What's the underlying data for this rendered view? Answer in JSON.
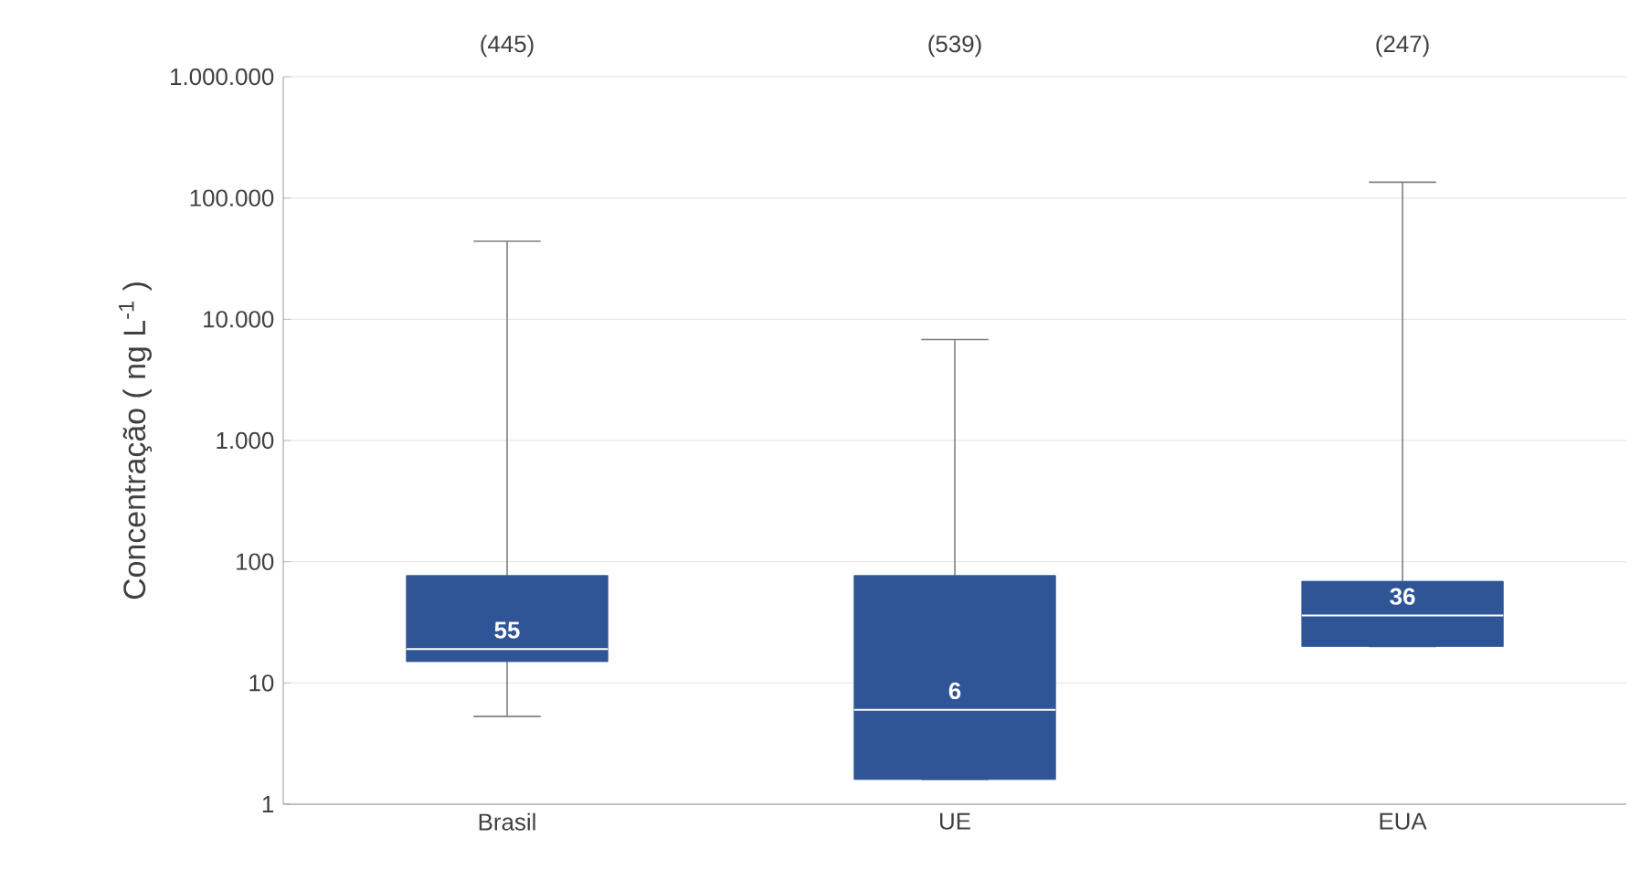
{
  "chart_data": {
    "type": "box",
    "categories": [
      "Brasil",
      "UE",
      "EUA"
    ],
    "ylabel": "Concentração ( ng L$^{-1}$ )",
    "log": "y",
    "grid": "y",
    "color": "#2f5597",
    "ylim": [
      1,
      1000000
    ],
    "yticks": [
      {
        "value": 1,
        "label": "1"
      },
      {
        "value": 10,
        "label": "10"
      },
      {
        "value": 100,
        "label": "100"
      },
      {
        "value": 1000,
        "label": "1.000"
      },
      {
        "value": 10000,
        "label": "10.000"
      },
      {
        "value": 100000,
        "label": "100.000"
      },
      {
        "value": 1000000,
        "label": "1.000.000"
      }
    ],
    "boxes": [
      {
        "low": 5.3,
        "q1": 15,
        "median": 19,
        "q3": 77,
        "high": 44000
      },
      {
        "low": 1.6,
        "q1": 1.6,
        "median": 6,
        "q3": 77,
        "high": 6800
      },
      {
        "low": 20,
        "q1": 20,
        "median": 36,
        "q3": 69,
        "high": 135000
      }
    ],
    "annotations": [
      "(445)",
      "(539)",
      "(247)",
      "55",
      "6",
      "36"
    ]
  }
}
